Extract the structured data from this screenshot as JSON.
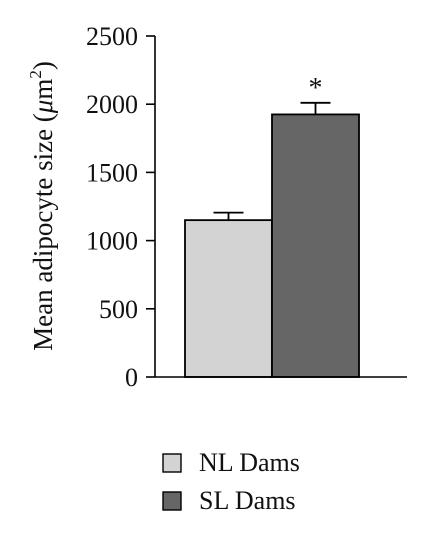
{
  "chart_data": {
    "type": "bar",
    "ylabel_prefix": "Mean adipocyte size (",
    "ylabel_unit_mu": "μ",
    "ylabel_unit_m": "m",
    "ylabel_unit_exp": "2",
    "ylabel_suffix": ")",
    "ylim": [
      0,
      2500
    ],
    "yticks": [
      "0",
      "500",
      "1000",
      "1500",
      "2000",
      "2500"
    ],
    "grid": false,
    "legend_position": "bottom",
    "series": [
      {
        "name": "NL Dams",
        "value": 1150,
        "error": 55,
        "color": "#d3d3d3",
        "significance": ""
      },
      {
        "name": "SL Dams",
        "value": 1925,
        "error": 85,
        "color": "#666666",
        "significance": "*"
      }
    ]
  }
}
